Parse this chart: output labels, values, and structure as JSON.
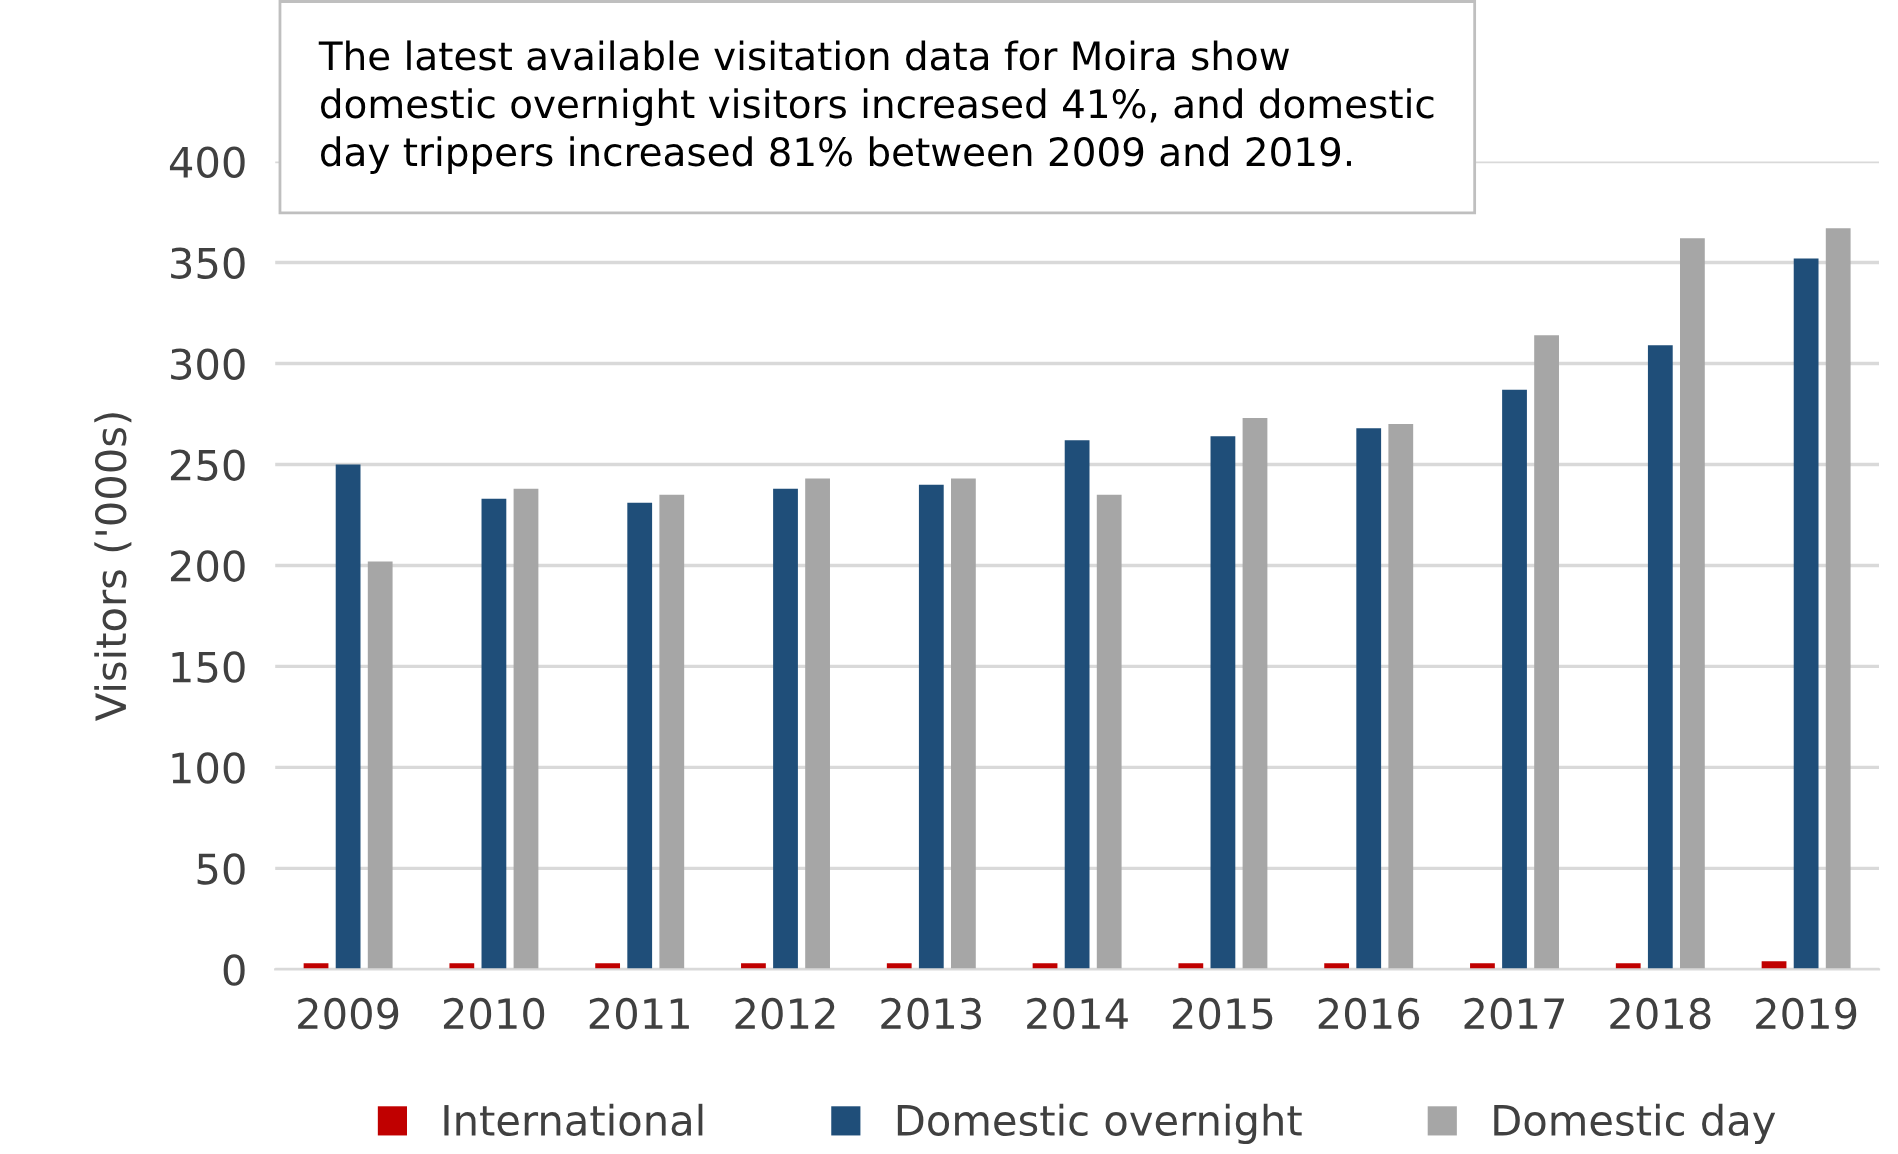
{
  "chart_data": {
    "type": "bar",
    "categories": [
      "2009",
      "2010",
      "2011",
      "2012",
      "2013",
      "2014",
      "2015",
      "2016",
      "2017",
      "2018",
      "2019"
    ],
    "series": [
      {
        "name": "International",
        "color": "#c00000",
        "values": [
          3,
          3,
          3,
          3,
          3,
          3,
          3,
          3,
          3,
          3,
          4
        ]
      },
      {
        "name": "Domestic overnight",
        "color": "#1f4e79",
        "values": [
          250,
          233,
          231,
          238,
          240,
          262,
          264,
          268,
          287,
          309,
          352
        ]
      },
      {
        "name": "Domestic day",
        "color": "#a6a6a6",
        "values": [
          202,
          238,
          235,
          243,
          243,
          235,
          273,
          270,
          314,
          362,
          367
        ]
      }
    ],
    "ylabel": "Visitors ('000s)",
    "ylim": [
      0,
      400
    ],
    "yticks": [
      0,
      50,
      100,
      150,
      200,
      250,
      300,
      350,
      400
    ],
    "grid": "y",
    "legend": "bottom",
    "annotations": [
      "The latest available visitation data for Moira show domestic overnight visitors increased 41%, and domestic day trippers increased 81% between 2009 and 2019."
    ]
  }
}
